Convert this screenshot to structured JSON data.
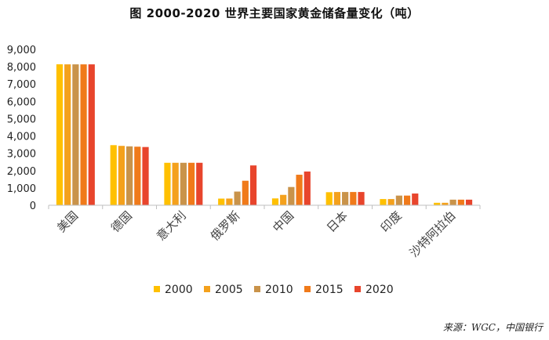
{
  "chart_data": {
    "type": "bar",
    "title": "图    2000-2020 世界主要国家黄金储备量变化（吨）",
    "categories": [
      "美国",
      "德国",
      "意大利",
      "俄罗斯",
      "中国",
      "日本",
      "印度",
      "沙特阿拉伯"
    ],
    "series": [
      {
        "name": "2000",
        "color": "#FFC000",
        "values": [
          8137,
          3469,
          2452,
          384,
          395,
          754,
          358,
          143
        ]
      },
      {
        "name": "2005",
        "color": "#F4A11C",
        "values": [
          8134,
          3428,
          2452,
          387,
          600,
          765,
          358,
          143
        ]
      },
      {
        "name": "2010",
        "color": "#C9934A",
        "values": [
          8134,
          3401,
          2452,
          790,
          1054,
          765,
          558,
          323
        ]
      },
      {
        "name": "2015",
        "color": "#F07A1A",
        "values": [
          8134,
          3381,
          2452,
          1415,
          1762,
          765,
          558,
          323
        ]
      },
      {
        "name": "2020",
        "color": "#E8452C",
        "values": [
          8134,
          3362,
          2452,
          2299,
          1948,
          765,
          677,
          323
        ]
      }
    ],
    "yticks": [
      "0",
      "1,000",
      "2,000",
      "3,000",
      "4,000",
      "5,000",
      "6,000",
      "7,000",
      "8,000",
      "9,000"
    ],
    "ylim": [
      0,
      9000
    ],
    "legend_position": "bottom",
    "grid": false
  },
  "source": "来源：WGC，中国银行"
}
